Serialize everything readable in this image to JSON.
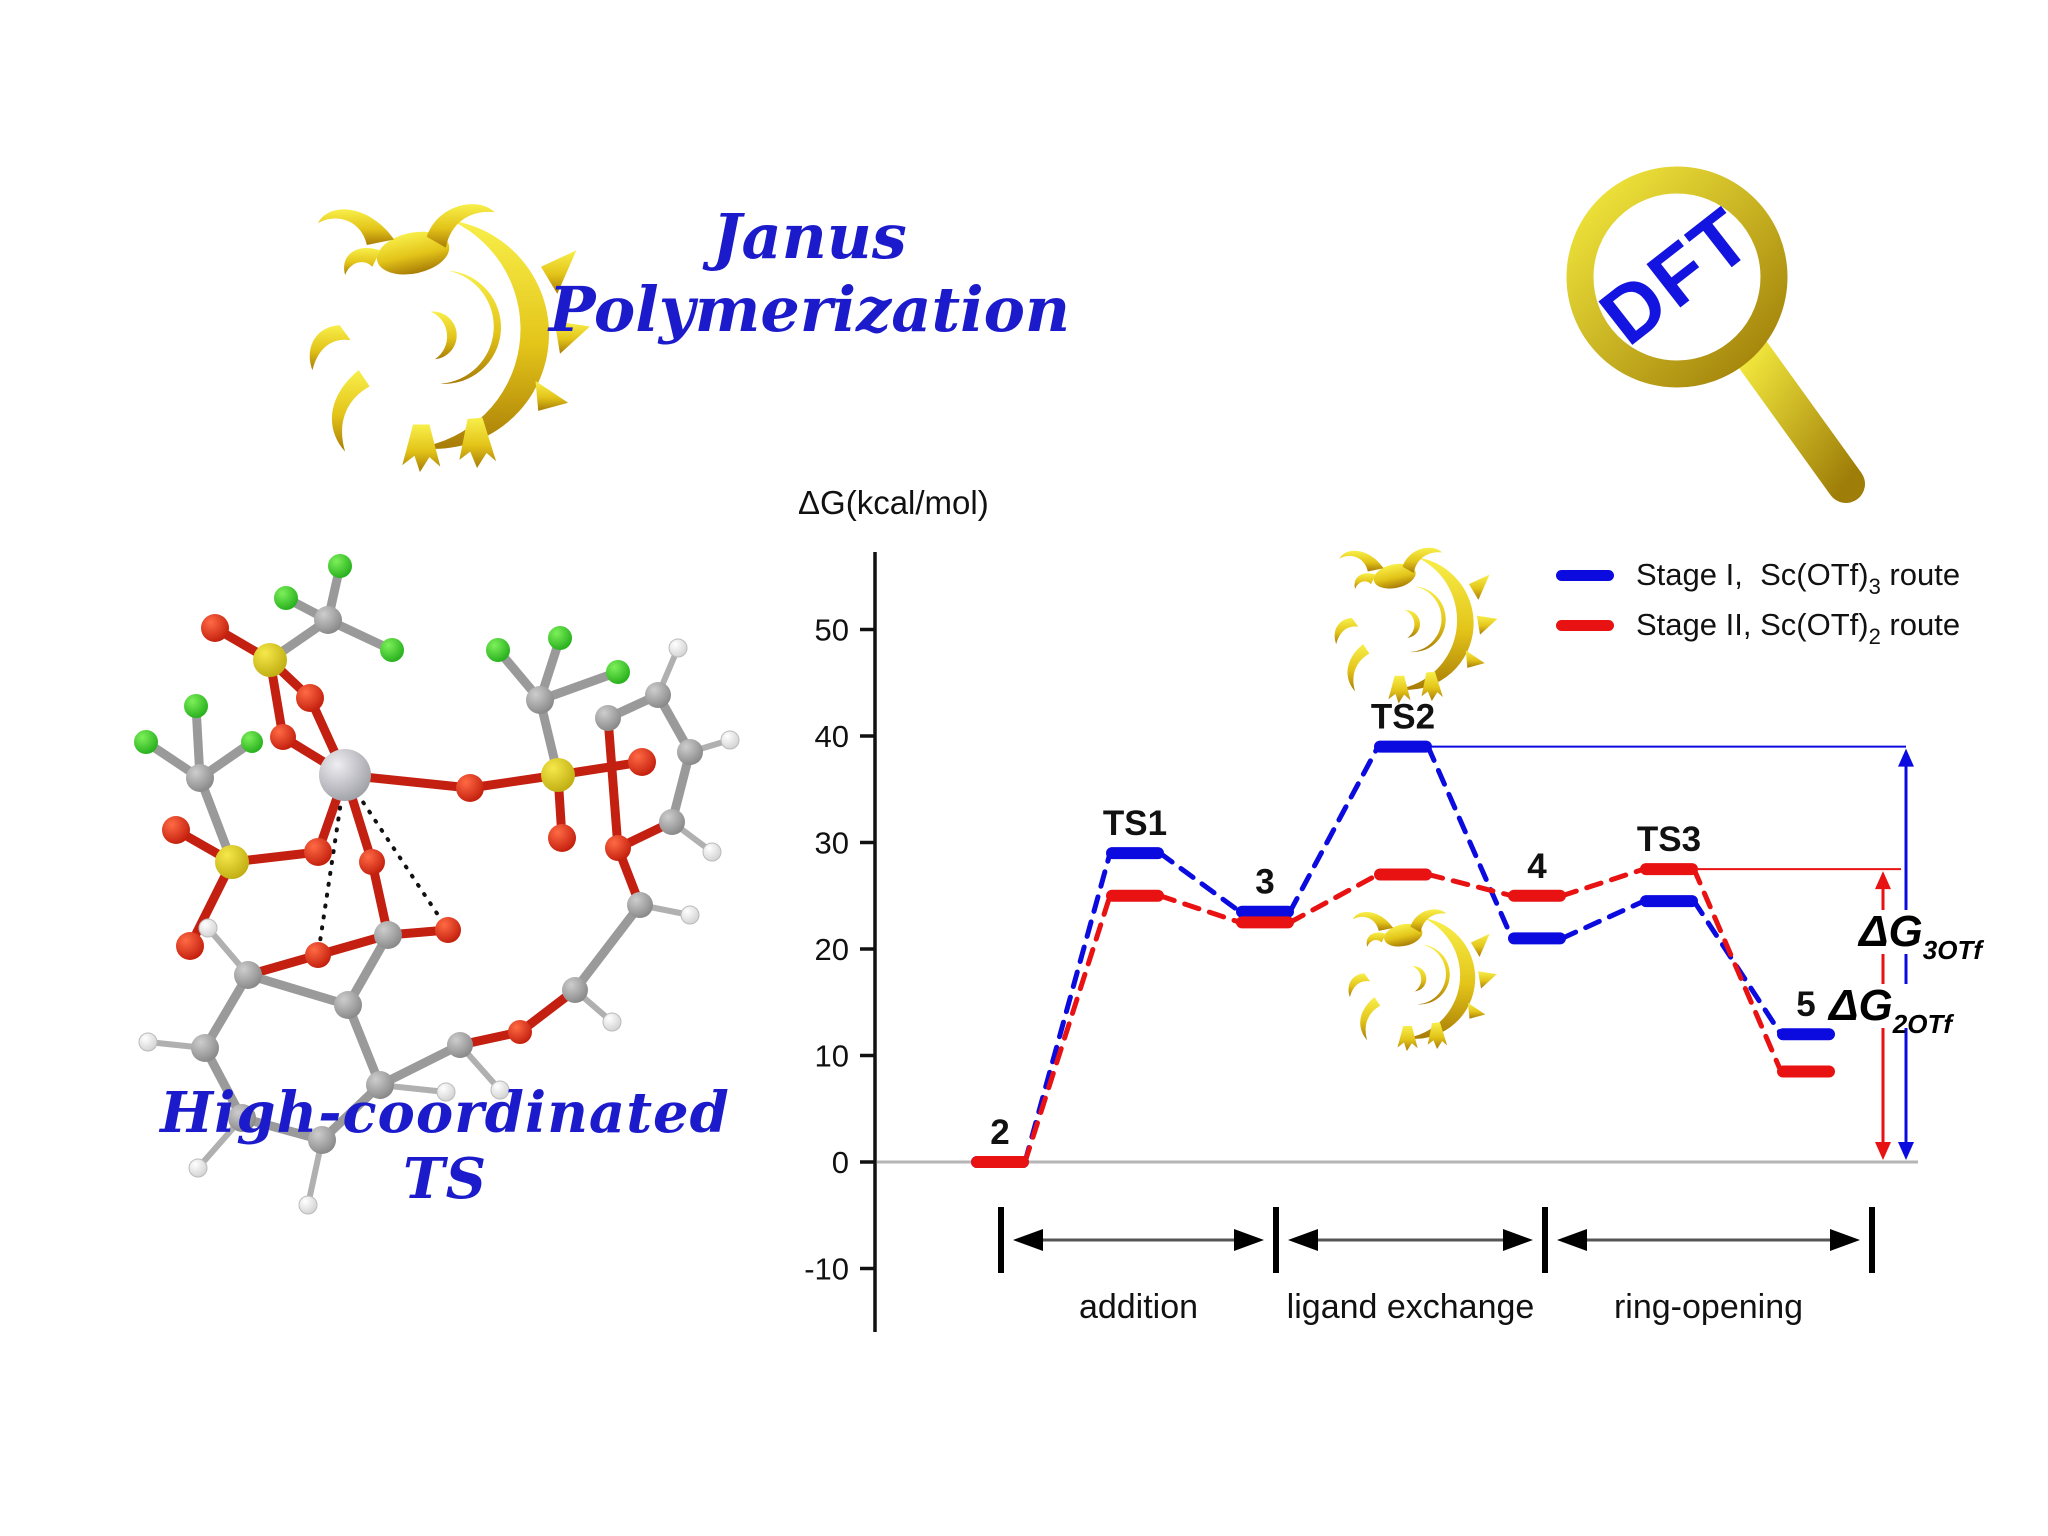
{
  "header": {
    "title": "Janus Polymerization",
    "title_color": "#1c1bcb",
    "logo": "gold-dragon-logo",
    "magnifier_text": "DFT"
  },
  "molecule": {
    "caption": "High-coordinated TS"
  },
  "chart_data": {
    "type": "line",
    "subtype": "reaction-energy-profile",
    "title": "",
    "xlabel": "",
    "ylabel": "ΔG(kcal/mol)",
    "yticks": [
      50,
      40,
      30,
      20,
      10,
      0,
      -10
    ],
    "ylim": [
      -13,
      57
    ],
    "grid": false,
    "legend_position": "top-right",
    "species": [
      "2",
      "TS1",
      "3",
      "TS2",
      "4",
      "TS3",
      "5"
    ],
    "series": [
      {
        "name": "Stage I, Sc(OTf)3 route",
        "label_prefix": "Stage I,  Sc(OTf)",
        "label_sub": "3",
        "label_suffix": " route",
        "color": "#0b0be0",
        "values": [
          0,
          29,
          23.5,
          39,
          21,
          24.5,
          12
        ]
      },
      {
        "name": "Stage II, Sc(OTf)2 route",
        "label_prefix": "Stage II, Sc(OTf)",
        "label_sub": "2",
        "label_suffix": " route",
        "color": "#e81212",
        "values": [
          0,
          25,
          22.5,
          27,
          25,
          27.5,
          8.5
        ]
      }
    ],
    "stages": [
      "addition",
      "ligand exchange",
      "ring-opening"
    ],
    "annotations": [
      {
        "text": "ΔG",
        "sub": "3OTf",
        "measures_series": "Stage I",
        "value": 39,
        "arrow_color": "#0b0be0"
      },
      {
        "text": "ΔG",
        "sub": "2OTf",
        "measures_series": "Stage II",
        "value": 27.5,
        "arrow_color": "#e81212"
      }
    ],
    "zero_line": true
  }
}
